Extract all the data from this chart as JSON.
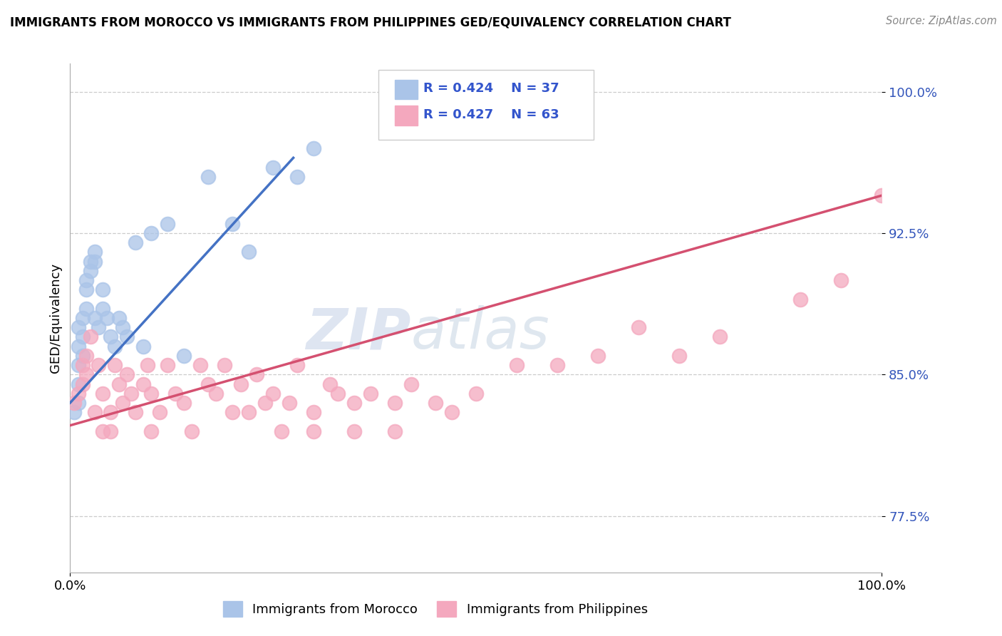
{
  "title": "IMMIGRANTS FROM MOROCCO VS IMMIGRANTS FROM PHILIPPINES GED/EQUIVALENCY CORRELATION CHART",
  "source": "Source: ZipAtlas.com",
  "ylabel": "GED/Equivalency",
  "yticks_labels": [
    "77.5%",
    "85.0%",
    "92.5%",
    "100.0%"
  ],
  "ytick_vals": [
    0.775,
    0.85,
    0.925,
    1.0
  ],
  "xlim": [
    0.0,
    1.0
  ],
  "ylim": [
    0.745,
    1.015
  ],
  "legend_r_morocco": "R = 0.424",
  "legend_n_morocco": "N = 37",
  "legend_r_philippines": "R = 0.427",
  "legend_n_philippines": "N = 63",
  "legend_label_morocco": "Immigrants from Morocco",
  "legend_label_philippines": "Immigrants from Philippines",
  "morocco_color": "#aac4e8",
  "philippines_color": "#f4a8be",
  "morocco_line_color": "#4472c4",
  "philippines_line_color": "#d45070",
  "watermark_zip": "ZIP",
  "watermark_atlas": "atlas",
  "morocco_x": [
    0.005,
    0.01,
    0.01,
    0.01,
    0.01,
    0.01,
    0.015,
    0.015,
    0.015,
    0.02,
    0.02,
    0.02,
    0.025,
    0.025,
    0.03,
    0.03,
    0.03,
    0.035,
    0.04,
    0.04,
    0.045,
    0.05,
    0.055,
    0.06,
    0.065,
    0.07,
    0.08,
    0.09,
    0.1,
    0.12,
    0.14,
    0.17,
    0.2,
    0.22,
    0.25,
    0.28,
    0.3
  ],
  "morocco_y": [
    0.83,
    0.875,
    0.865,
    0.855,
    0.845,
    0.835,
    0.88,
    0.87,
    0.86,
    0.9,
    0.895,
    0.885,
    0.91,
    0.905,
    0.915,
    0.91,
    0.88,
    0.875,
    0.895,
    0.885,
    0.88,
    0.87,
    0.865,
    0.88,
    0.875,
    0.87,
    0.92,
    0.865,
    0.925,
    0.93,
    0.86,
    0.955,
    0.93,
    0.915,
    0.96,
    0.955,
    0.97
  ],
  "philippines_x": [
    0.005,
    0.01,
    0.015,
    0.015,
    0.02,
    0.02,
    0.025,
    0.03,
    0.035,
    0.04,
    0.04,
    0.05,
    0.05,
    0.055,
    0.06,
    0.065,
    0.07,
    0.075,
    0.08,
    0.09,
    0.095,
    0.1,
    0.1,
    0.11,
    0.12,
    0.13,
    0.14,
    0.15,
    0.16,
    0.17,
    0.18,
    0.19,
    0.2,
    0.21,
    0.22,
    0.23,
    0.24,
    0.25,
    0.26,
    0.27,
    0.28,
    0.3,
    0.3,
    0.32,
    0.33,
    0.35,
    0.35,
    0.37,
    0.4,
    0.4,
    0.42,
    0.45,
    0.47,
    0.5,
    0.55,
    0.6,
    0.65,
    0.7,
    0.75,
    0.8,
    0.9,
    0.95,
    1.0
  ],
  "philippines_y": [
    0.835,
    0.84,
    0.855,
    0.845,
    0.86,
    0.85,
    0.87,
    0.83,
    0.855,
    0.84,
    0.82,
    0.83,
    0.82,
    0.855,
    0.845,
    0.835,
    0.85,
    0.84,
    0.83,
    0.845,
    0.855,
    0.82,
    0.84,
    0.83,
    0.855,
    0.84,
    0.835,
    0.82,
    0.855,
    0.845,
    0.84,
    0.855,
    0.83,
    0.845,
    0.83,
    0.85,
    0.835,
    0.84,
    0.82,
    0.835,
    0.855,
    0.82,
    0.83,
    0.845,
    0.84,
    0.835,
    0.82,
    0.84,
    0.835,
    0.82,
    0.845,
    0.835,
    0.83,
    0.84,
    0.855,
    0.855,
    0.86,
    0.875,
    0.86,
    0.87,
    0.89,
    0.9,
    0.945
  ],
  "morocco_line_x": [
    0.0,
    0.275
  ],
  "morocco_line_y": [
    0.835,
    0.965
  ],
  "philippines_line_x": [
    0.0,
    1.0
  ],
  "philippines_line_y": [
    0.823,
    0.945
  ]
}
